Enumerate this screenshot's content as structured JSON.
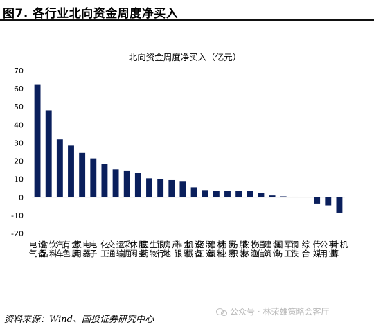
{
  "figure": {
    "title": "图7. 各行业北向资金周度净买入",
    "source": "资料来源：Wind、国投证券研究中心",
    "watermark": "公众号 · 林荣雄策略会客厅"
  },
  "colors": {
    "bar": "#0a1f5c",
    "axis": "#d9d9d9",
    "rule": "#111111"
  },
  "chart_data": {
    "type": "bar",
    "title": "北向资金周度净买入（亿元）",
    "xlabel": "",
    "ylabel": "",
    "ylim": [
      -20,
      70
    ],
    "yticks": [
      70,
      60,
      50,
      40,
      30,
      20,
      10,
      0,
      -10,
      -20
    ],
    "grid": false,
    "legend": "none",
    "categories": [
      "电气设备",
      "食品饮料",
      "汽车",
      "有色金属",
      "家用电器",
      "电子",
      "化工",
      "交通运输",
      "采掘",
      "休闲服务",
      "医药生物",
      "银行",
      "房地产",
      "非银金融",
      "机械设备",
      "轻工制造",
      "建筑材料",
      "商业贸易",
      "纺织服装",
      "农林牧渔",
      "通信",
      "建筑装饰",
      "国防军工",
      "钢铁",
      "综合",
      "传媒",
      "公用事业",
      "计算机"
    ],
    "values": [
      62.5,
      48,
      32,
      28.5,
      24.5,
      21.5,
      18.5,
      15.5,
      14.5,
      13.5,
      10.5,
      10,
      9.5,
      9,
      5.5,
      4,
      3.5,
      3.5,
      3.5,
      3.5,
      2.5,
      1,
      0.5,
      0.3,
      0,
      -3.5,
      -4.5,
      -8.5
    ]
  }
}
